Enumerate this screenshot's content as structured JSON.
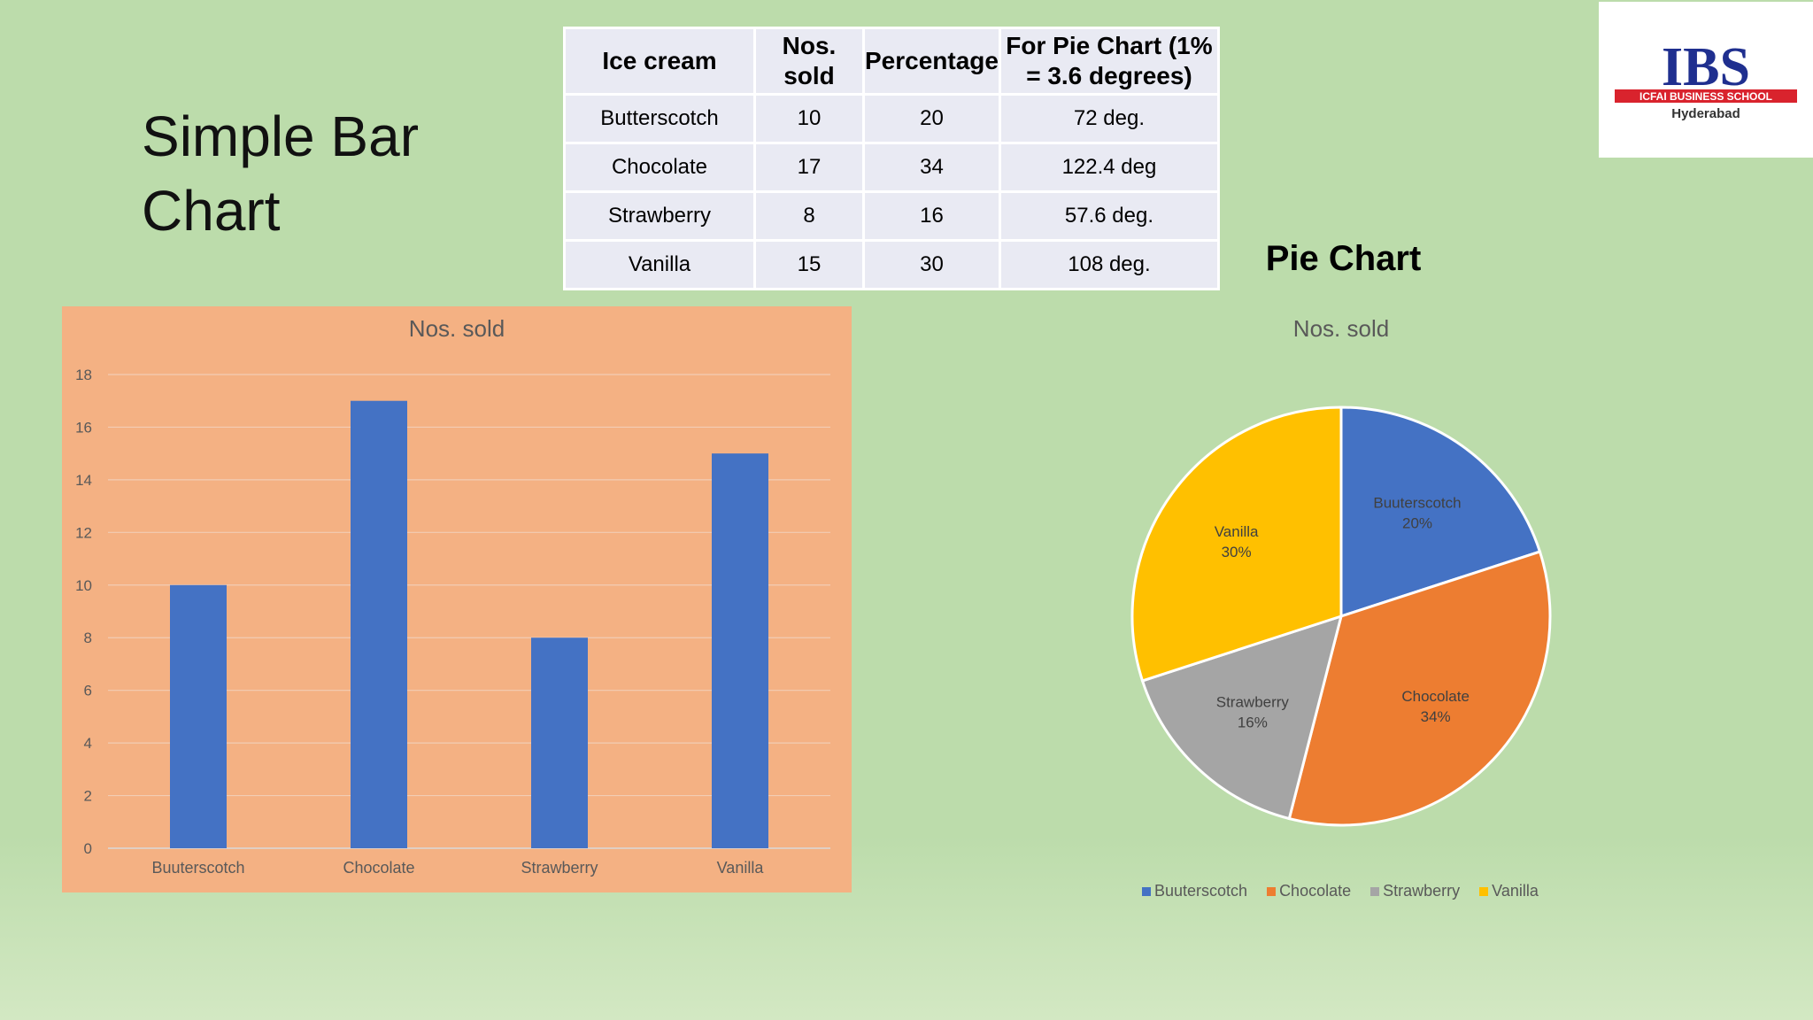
{
  "slide": {
    "title": "Simple Bar Chart",
    "pie_heading": "Pie Chart"
  },
  "table": {
    "headers": [
      "Ice cream",
      "Nos. sold",
      "Percentage",
      "For Pie Chart (1% = 3.6 degrees)"
    ],
    "rows": [
      [
        "Butterscotch",
        "10",
        "20",
        "72 deg."
      ],
      [
        "Chocolate",
        "17",
        "34",
        "122.4 deg"
      ],
      [
        "Strawberry",
        "8",
        "16",
        "57.6 deg."
      ],
      [
        "Vanilla",
        "15",
        "30",
        "108 deg."
      ]
    ]
  },
  "logo": {
    "name": "IBS",
    "line1": "ICFAI BUSINESS SCHOOL",
    "line2": "Hyderabad"
  },
  "colors": {
    "bar": "#4472c4",
    "butterscotch": "#4472c4",
    "chocolate": "#ed7d31",
    "strawberry": "#a5a5a5",
    "vanilla": "#ffc000",
    "bar_panel": "#f4b183",
    "logo_blue": "#1f2f8f",
    "logo_red": "#d9232d"
  },
  "chart_data": [
    {
      "type": "bar",
      "title": "Nos. sold",
      "categories": [
        "Buuterscotch",
        "Chocolate",
        "Strawberry",
        "Vanilla"
      ],
      "values": [
        10,
        17,
        8,
        15
      ],
      "ylim": [
        0,
        18
      ],
      "yticks": [
        0,
        2,
        4,
        6,
        8,
        10,
        12,
        14,
        16,
        18
      ],
      "grid": true
    },
    {
      "type": "pie",
      "title": "Nos. sold",
      "categories": [
        "Buuterscotch",
        "Chocolate",
        "Strawberry",
        "Vanilla"
      ],
      "values": [
        10,
        17,
        8,
        15
      ],
      "percent_labels": [
        "20%",
        "34%",
        "16%",
        "30%"
      ],
      "legend": "bottom"
    }
  ]
}
